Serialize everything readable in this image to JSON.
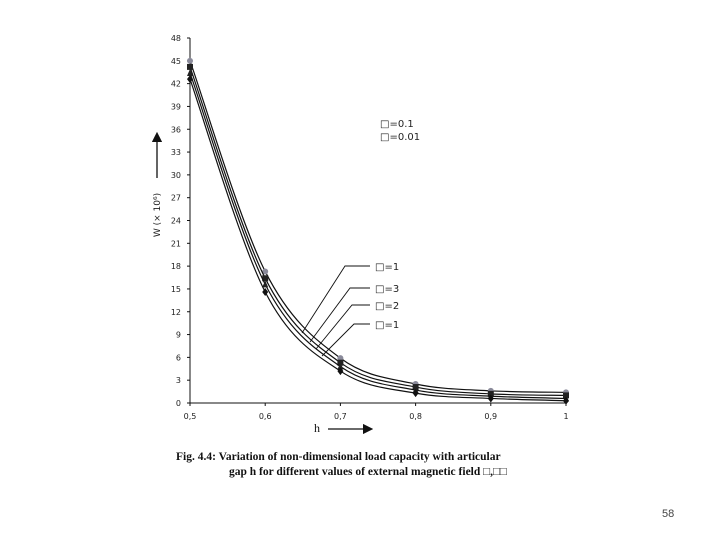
{
  "chart_data": {
    "type": "line",
    "title": "",
    "xlabel": "h",
    "ylabel": "W (× 10⁶)",
    "xlim": [
      0.5,
      1.0
    ],
    "ylim": [
      0,
      48
    ],
    "x": [
      0.5,
      0.6,
      0.7,
      0.8,
      0.9,
      1.0
    ],
    "x_ticks": [
      "0,5",
      "0,6",
      "0,7",
      "0,8",
      "0,9",
      "1"
    ],
    "y_ticks": [
      "0",
      "3",
      "6",
      "9",
      "12",
      "15",
      "18",
      "21",
      "24",
      "27",
      "30",
      "33",
      "36",
      "39",
      "42",
      "45",
      "48"
    ],
    "series": [
      {
        "name": "□=1",
        "marker": "circle",
        "color": "#8a8a9a",
        "values": [
          45.0,
          17.3,
          5.9,
          2.5,
          1.6,
          1.4
        ]
      },
      {
        "name": "□=3",
        "marker": "square",
        "color": "#222222",
        "values": [
          44.2,
          16.4,
          5.3,
          2.1,
          1.2,
          1.0
        ]
      },
      {
        "name": "□=2",
        "marker": "triangle",
        "color": "#222222",
        "values": [
          43.4,
          15.6,
          4.8,
          1.7,
          0.9,
          0.6
        ]
      },
      {
        "name": "□=1",
        "marker": "diamond",
        "color": "#111111",
        "values": [
          42.6,
          14.6,
          4.2,
          1.3,
          0.6,
          0.3
        ]
      }
    ],
    "annotations": [
      {
        "text": "□=0.1",
        "target_series": null
      },
      {
        "text": "□=0.01",
        "target_series": null
      }
    ],
    "grid": false,
    "legend": "callouts-right"
  },
  "caption": {
    "line1": "Fig. 4.4:   Variation of non-dimensional load capacity with articular",
    "line2": "gap h for different values of external magnetic field □,□□"
  },
  "page_number": "58"
}
